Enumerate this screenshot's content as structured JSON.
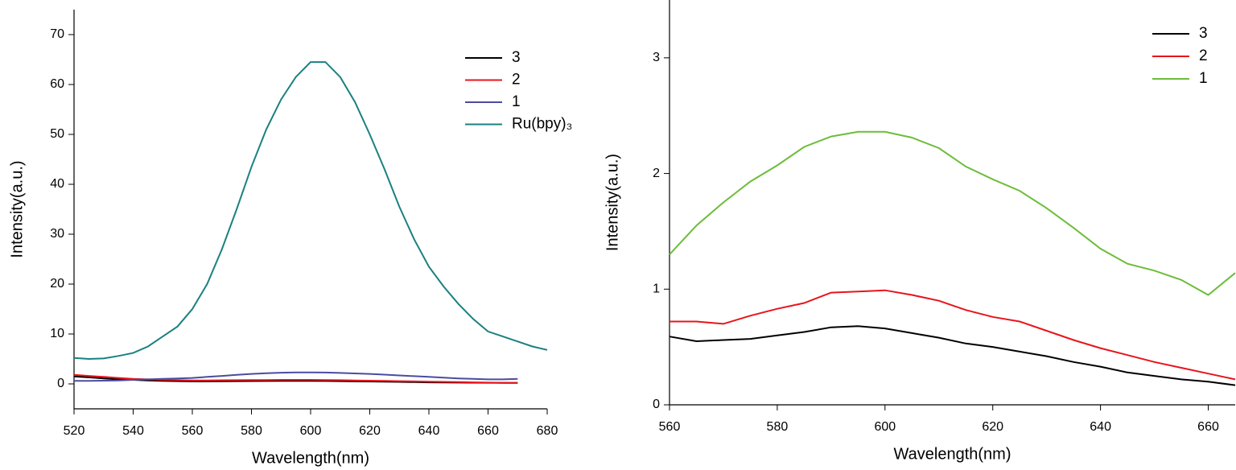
{
  "chart_data": [
    {
      "type": "line",
      "xlabel": "Wavelength(nm)",
      "ylabel": "Intensity(a.u.)",
      "legend": "upper right",
      "x": [
        520,
        525,
        530,
        535,
        540,
        545,
        550,
        555,
        560,
        565,
        570,
        575,
        580,
        585,
        590,
        595,
        600,
        605,
        610,
        615,
        620,
        625,
        630,
        635,
        640,
        645,
        650,
        655,
        660,
        665,
        670,
        675,
        680
      ],
      "xlim": [
        520,
        680
      ],
      "xticks": [
        520,
        540,
        560,
        580,
        600,
        620,
        640,
        660,
        680
      ],
      "ylim": [
        -5,
        75
      ],
      "yticks": [
        0,
        10,
        20,
        30,
        40,
        50,
        60,
        70
      ],
      "series": [
        {
          "name": "3",
          "color": "#000000",
          "values": [
            1.5,
            1.3,
            1.1,
            0.9,
            0.8,
            0.7,
            0.6,
            0.55,
            0.5,
            0.5,
            0.52,
            0.55,
            0.57,
            0.58,
            0.6,
            0.6,
            0.6,
            0.58,
            0.55,
            0.5,
            0.48,
            0.45,
            0.4,
            0.35,
            0.3,
            0.28,
            0.26,
            0.24,
            0.22,
            0.2,
            0.2,
            null,
            null
          ]
        },
        {
          "name": "2",
          "color": "#e8141c",
          "values": [
            1.8,
            1.6,
            1.4,
            1.2,
            1.0,
            0.9,
            0.8,
            0.75,
            0.7,
            0.7,
            0.72,
            0.74,
            0.76,
            0.78,
            0.8,
            0.8,
            0.8,
            0.78,
            0.74,
            0.7,
            0.65,
            0.6,
            0.55,
            0.5,
            0.45,
            0.4,
            0.35,
            0.3,
            0.25,
            0.22,
            0.2,
            null,
            null
          ]
        },
        {
          "name": "1",
          "color": "#4b4ca0",
          "values": [
            0.6,
            0.62,
            0.65,
            0.7,
            0.8,
            0.9,
            1.0,
            1.1,
            1.2,
            1.4,
            1.6,
            1.8,
            2.0,
            2.15,
            2.25,
            2.3,
            2.3,
            2.28,
            2.2,
            2.1,
            2.0,
            1.85,
            1.7,
            1.55,
            1.4,
            1.25,
            1.1,
            1.0,
            0.9,
            0.9,
            1.0,
            null,
            null
          ]
        },
        {
          "name": "Ru(bpy)₃",
          "color": "#1a8080",
          "values": [
            5.2,
            5.0,
            5.1,
            5.6,
            6.2,
            7.5,
            9.5,
            11.5,
            15,
            20,
            27,
            35,
            43.5,
            51,
            57,
            61.5,
            64.5,
            64.5,
            61.5,
            56.5,
            50,
            43,
            35.5,
            29,
            23.5,
            19.5,
            16,
            13,
            10.5,
            9.5,
            8.5,
            7.5,
            6.8
          ]
        }
      ]
    },
    {
      "type": "line",
      "xlabel": "Wavelength(nm)",
      "ylabel": "Intensity(a.u.)",
      "legend": "upper right",
      "x": [
        560,
        565,
        570,
        575,
        580,
        585,
        590,
        595,
        600,
        605,
        610,
        615,
        620,
        625,
        630,
        635,
        640,
        645,
        650,
        655,
        660,
        665
      ],
      "xlim": [
        560,
        665
      ],
      "xticks": [
        560,
        580,
        600,
        620,
        640,
        660
      ],
      "ylim": [
        0,
        3.5
      ],
      "yticks": [
        0,
        1,
        2,
        3
      ],
      "series": [
        {
          "name": "3",
          "color": "#000000",
          "values": [
            0.59,
            0.55,
            0.56,
            0.57,
            0.6,
            0.63,
            0.67,
            0.68,
            0.66,
            0.62,
            0.58,
            0.53,
            0.5,
            0.46,
            0.42,
            0.37,
            0.33,
            0.28,
            0.25,
            0.22,
            0.2,
            0.17
          ]
        },
        {
          "name": "2",
          "color": "#e8141c",
          "values": [
            0.72,
            0.72,
            0.7,
            0.77,
            0.83,
            0.88,
            0.97,
            0.98,
            0.99,
            0.95,
            0.9,
            0.82,
            0.76,
            0.72,
            0.64,
            0.56,
            0.49,
            0.43,
            0.37,
            0.32,
            0.27,
            0.22
          ]
        },
        {
          "name": "1",
          "color": "#6cbd3a",
          "values": [
            1.3,
            1.55,
            1.75,
            1.93,
            2.07,
            2.23,
            2.32,
            2.36,
            2.36,
            2.31,
            2.22,
            2.06,
            1.95,
            1.85,
            1.7,
            1.53,
            1.35,
            1.22,
            1.16,
            1.08,
            0.95,
            1.14
          ]
        }
      ]
    }
  ]
}
